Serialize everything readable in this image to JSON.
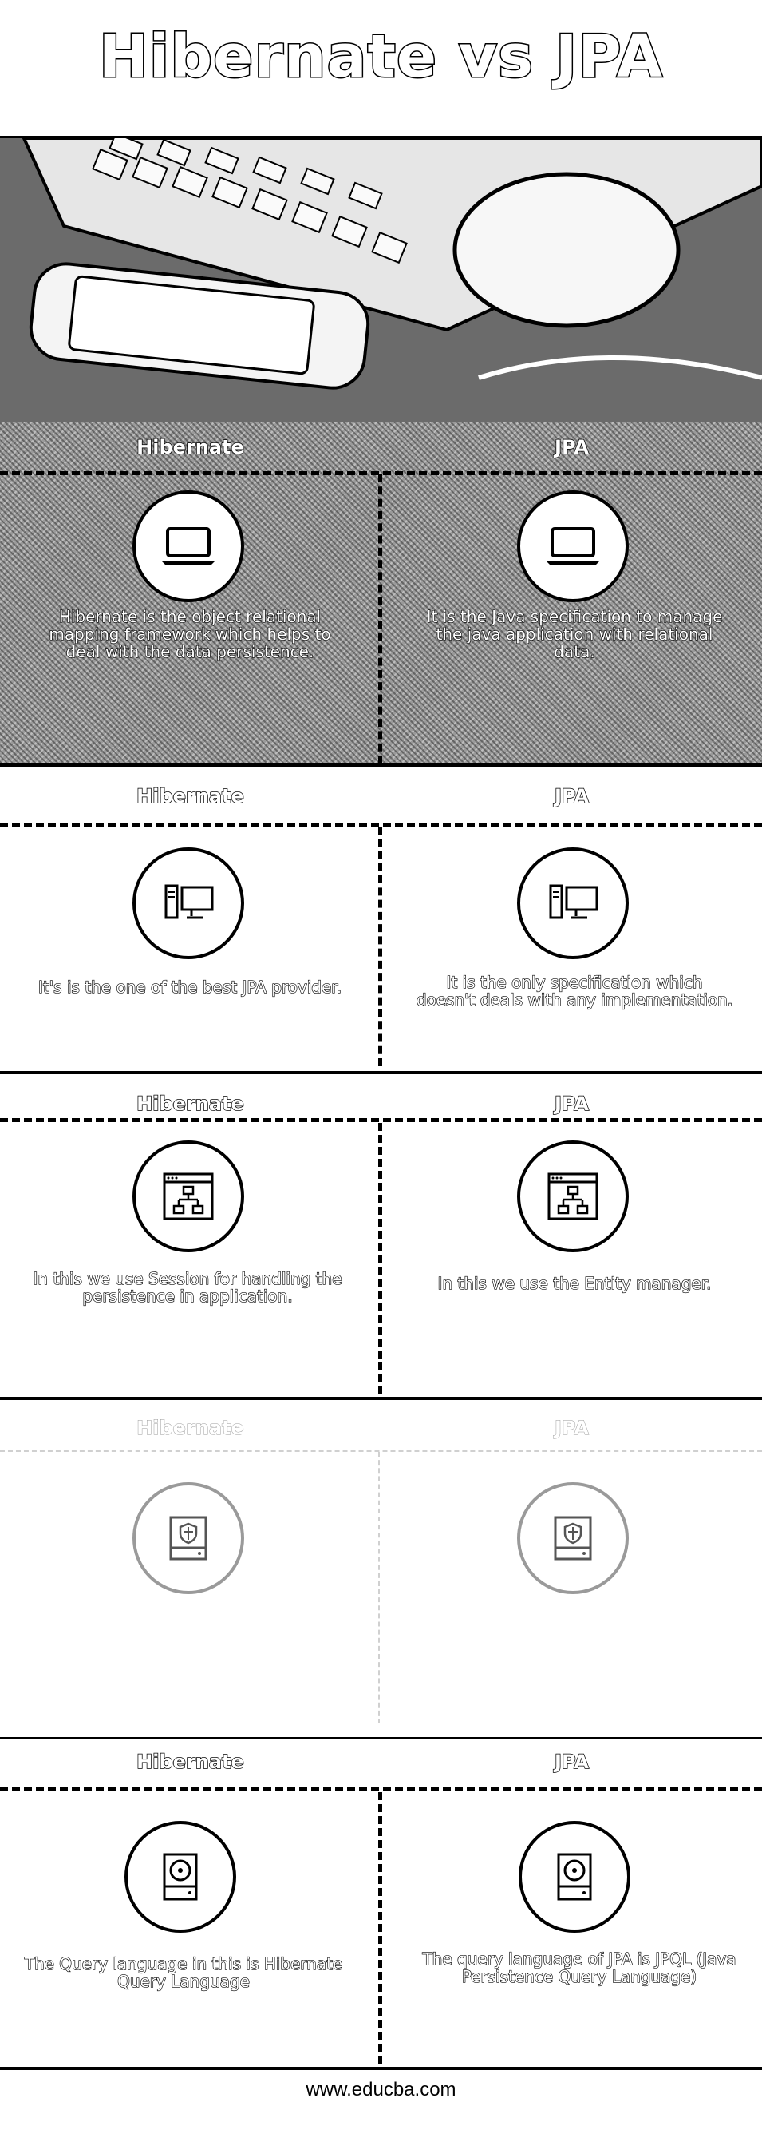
{
  "title": "Hibernate vs JPA",
  "sections": [
    {
      "left_heading": "Hibernate",
      "right_heading": "JPA",
      "left_icon": "laptop-icon",
      "right_icon": "laptop-icon",
      "left_text": "Hibernate is the object relational mapping framework which helps to deal with the data persistence.",
      "right_text": "It is the Java specification to manage the java application with relational data."
    },
    {
      "left_heading": "Hibernate",
      "right_heading": "JPA",
      "left_icon": "desktop-computer-icon",
      "right_icon": "desktop-computer-icon",
      "left_text": "It's is the one of the best JPA provider.",
      "right_text": "It is the only specification which doesn't deals with any implementation."
    },
    {
      "left_heading": "Hibernate",
      "right_heading": "JPA",
      "left_icon": "browser-sitemap-icon",
      "right_icon": "browser-sitemap-icon",
      "left_text": "In this we use Session for handling the persistence in application.",
      "right_text": "In this we use the Entity manager."
    },
    {
      "left_heading": "Hibernate",
      "right_heading": "JPA",
      "left_icon": "secure-storage-icon",
      "right_icon": "secure-storage-icon",
      "left_text": "",
      "right_text": ""
    },
    {
      "left_heading": "Hibernate",
      "right_heading": "JPA",
      "left_icon": "hard-disk-icon",
      "right_icon": "hard-disk-icon",
      "left_text": "The Query language in this is Hibernate Query Language",
      "right_text": "The query language of JPA is JPQL (Java Persistence Query Language)"
    }
  ],
  "footer": "www.educba.com"
}
